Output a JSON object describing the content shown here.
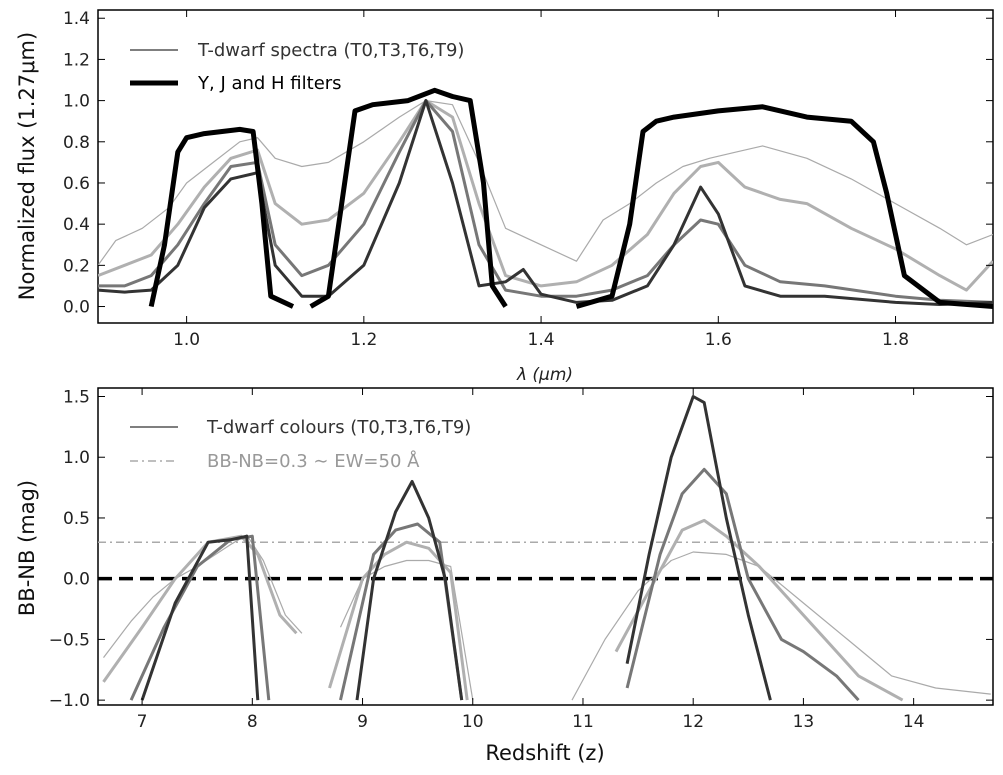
{
  "chart_data": [
    {
      "type": "line",
      "panel": "top",
      "xlabel": "λ (μm)",
      "ylabel": "Normalized flux (1.27μm)",
      "xlim": [
        0.9,
        1.91
      ],
      "ylim": [
        -0.08,
        1.44
      ],
      "xticks": [
        1.0,
        1.2,
        1.4,
        1.6,
        1.8
      ],
      "xtick_labels": [
        "1.0",
        "1.2",
        "1.4",
        "1.6",
        "1.8"
      ],
      "yticks": [
        0.0,
        0.2,
        0.4,
        0.6,
        0.8,
        1.0,
        1.2,
        1.4
      ],
      "ytick_labels": [
        "0.0",
        "0.2",
        "0.4",
        "0.6",
        "0.8",
        "1.0",
        "1.2",
        "1.4"
      ],
      "legend": [
        {
          "label": "T-dwarf spectra (T0,T3,T6,T9)",
          "color": "#555555",
          "style": "thin"
        },
        {
          "label": "Y, J and H filters",
          "color": "#000000",
          "style": "thick"
        }
      ],
      "series": [
        {
          "name": "T0",
          "color": "#aaaaaa",
          "width": 1.2,
          "x": [
            0.9,
            0.92,
            0.95,
            0.98,
            1.0,
            1.03,
            1.06,
            1.08,
            1.1,
            1.13,
            1.16,
            1.2,
            1.24,
            1.27,
            1.3,
            1.33,
            1.36,
            1.4,
            1.44,
            1.47,
            1.5,
            1.53,
            1.56,
            1.59,
            1.62,
            1.65,
            1.7,
            1.75,
            1.8,
            1.85,
            1.88,
            1.91
          ],
          "y": [
            0.2,
            0.32,
            0.38,
            0.48,
            0.6,
            0.7,
            0.8,
            0.82,
            0.72,
            0.68,
            0.7,
            0.8,
            0.92,
            1.0,
            0.98,
            0.7,
            0.38,
            0.3,
            0.22,
            0.42,
            0.5,
            0.6,
            0.68,
            0.72,
            0.75,
            0.78,
            0.72,
            0.62,
            0.5,
            0.38,
            0.3,
            0.35
          ]
        },
        {
          "name": "T3",
          "color": "#b0b0b0",
          "width": 3,
          "x": [
            0.9,
            0.93,
            0.96,
            0.99,
            1.02,
            1.05,
            1.08,
            1.1,
            1.13,
            1.16,
            1.2,
            1.24,
            1.27,
            1.3,
            1.33,
            1.36,
            1.4,
            1.44,
            1.48,
            1.52,
            1.55,
            1.58,
            1.6,
            1.63,
            1.67,
            1.7,
            1.75,
            1.8,
            1.85,
            1.88,
            1.91
          ],
          "y": [
            0.15,
            0.2,
            0.25,
            0.4,
            0.58,
            0.72,
            0.76,
            0.5,
            0.4,
            0.42,
            0.55,
            0.8,
            1.0,
            0.92,
            0.5,
            0.15,
            0.1,
            0.12,
            0.2,
            0.35,
            0.55,
            0.68,
            0.7,
            0.58,
            0.52,
            0.5,
            0.38,
            0.28,
            0.15,
            0.08,
            0.22
          ]
        },
        {
          "name": "T6",
          "color": "#777777",
          "width": 3,
          "x": [
            0.9,
            0.93,
            0.96,
            0.99,
            1.02,
            1.05,
            1.08,
            1.1,
            1.13,
            1.16,
            1.2,
            1.24,
            1.27,
            1.3,
            1.33,
            1.36,
            1.4,
            1.44,
            1.48,
            1.52,
            1.55,
            1.58,
            1.6,
            1.63,
            1.67,
            1.72,
            1.8,
            1.85,
            1.91
          ],
          "y": [
            0.1,
            0.1,
            0.15,
            0.3,
            0.5,
            0.68,
            0.7,
            0.3,
            0.15,
            0.2,
            0.4,
            0.75,
            1.0,
            0.85,
            0.3,
            0.08,
            0.05,
            0.05,
            0.08,
            0.15,
            0.3,
            0.42,
            0.4,
            0.2,
            0.12,
            0.1,
            0.05,
            0.03,
            0.02
          ]
        },
        {
          "name": "T9",
          "color": "#333333",
          "width": 3,
          "x": [
            0.9,
            0.93,
            0.96,
            0.99,
            1.02,
            1.05,
            1.08,
            1.1,
            1.13,
            1.16,
            1.2,
            1.24,
            1.27,
            1.3,
            1.33,
            1.36,
            1.38,
            1.4,
            1.44,
            1.48,
            1.52,
            1.55,
            1.58,
            1.6,
            1.63,
            1.67,
            1.72,
            1.8,
            1.85,
            1.91
          ],
          "y": [
            0.08,
            0.07,
            0.08,
            0.2,
            0.48,
            0.62,
            0.65,
            0.2,
            0.05,
            0.05,
            0.2,
            0.6,
            1.0,
            0.6,
            0.1,
            0.12,
            0.18,
            0.06,
            0.02,
            0.03,
            0.1,
            0.3,
            0.58,
            0.45,
            0.1,
            0.05,
            0.05,
            0.02,
            0.01,
            0.02
          ]
        }
      ],
      "filters": [
        {
          "name": "Y",
          "x": [
            0.96,
            0.975,
            0.99,
            1.0,
            1.02,
            1.04,
            1.06,
            1.075,
            1.085,
            1.095,
            1.12
          ],
          "y": [
            0.0,
            0.3,
            0.75,
            0.82,
            0.84,
            0.85,
            0.86,
            0.85,
            0.5,
            0.05,
            0.0
          ]
        },
        {
          "name": "J",
          "x": [
            1.14,
            1.16,
            1.175,
            1.19,
            1.21,
            1.25,
            1.28,
            1.3,
            1.32,
            1.335,
            1.345,
            1.36
          ],
          "y": [
            0.0,
            0.05,
            0.5,
            0.95,
            0.98,
            1.0,
            1.05,
            1.02,
            1.0,
            0.6,
            0.1,
            0.0
          ]
        },
        {
          "name": "H",
          "x": [
            1.44,
            1.48,
            1.5,
            1.515,
            1.53,
            1.55,
            1.6,
            1.65,
            1.7,
            1.75,
            1.775,
            1.79,
            1.81,
            1.85,
            1.91
          ],
          "y": [
            0.0,
            0.05,
            0.4,
            0.85,
            0.9,
            0.92,
            0.95,
            0.97,
            0.92,
            0.9,
            0.8,
            0.55,
            0.15,
            0.02,
            0.0
          ]
        }
      ]
    },
    {
      "type": "line",
      "panel": "bottom",
      "xlabel": "Redshift (z)",
      "ylabel": "BB-NB (mag)",
      "xlim": [
        6.6,
        14.72
      ],
      "ylim": [
        -1.04,
        1.57
      ],
      "xticks": [
        7,
        8,
        9,
        10,
        11,
        12,
        13,
        14
      ],
      "xtick_labels": [
        "7",
        "8",
        "9",
        "10",
        "11",
        "12",
        "13",
        "14"
      ],
      "yticks": [
        -1.0,
        -0.5,
        0.0,
        0.5,
        1.0,
        1.5
      ],
      "ytick_labels": [
        "−1.0",
        "−0.5",
        "0.0",
        "0.5",
        "1.0",
        "1.5"
      ],
      "legend": [
        {
          "label": "T-dwarf colours (T0,T3,T6,T9)",
          "color": "#555555",
          "style": "thin"
        },
        {
          "label": "BB-NB=0.3 ∼ EW=50 Å",
          "color": "#aaaaaa",
          "style": "dashdot"
        }
      ],
      "hlines": [
        {
          "y": 0.3,
          "color": "#aaaaaa",
          "style": "dashdot"
        },
        {
          "y": 0.0,
          "color": "#000000",
          "style": "dashed"
        }
      ],
      "series": [
        {
          "name": "T0",
          "color": "#aaaaaa",
          "width": 1.2,
          "segments": [
            {
              "x": [
                6.65,
                6.9,
                7.1,
                7.3,
                7.5,
                7.8,
                7.95,
                8.1,
                8.3,
                8.45
              ],
              "y": [
                -0.65,
                -0.35,
                -0.15,
                0.0,
                0.1,
                0.28,
                0.36,
                0.15,
                -0.3,
                -0.45
              ]
            },
            {
              "x": [
                8.8,
                9.0,
                9.2,
                9.4,
                9.6,
                9.8,
                10.0
              ],
              "y": [
                -0.4,
                0.0,
                0.1,
                0.15,
                0.15,
                0.1,
                -1.0
              ]
            },
            {
              "x": [
                10.9,
                11.2,
                11.5,
                11.8,
                12.0,
                12.3,
                12.6,
                13.0,
                13.4,
                13.8,
                14.2,
                14.7
              ],
              "y": [
                -1.0,
                -0.5,
                -0.1,
                0.15,
                0.22,
                0.2,
                0.1,
                -0.2,
                -0.5,
                -0.8,
                -0.9,
                -0.95
              ]
            }
          ]
        },
        {
          "name": "T3",
          "color": "#b0b0b0",
          "width": 3,
          "segments": [
            {
              "x": [
                6.65,
                7.0,
                7.3,
                7.6,
                7.9,
                8.05,
                8.25,
                8.4
              ],
              "y": [
                -0.85,
                -0.4,
                0.0,
                0.3,
                0.35,
                0.2,
                -0.3,
                -0.45
              ]
            },
            {
              "x": [
                8.7,
                9.0,
                9.2,
                9.4,
                9.6,
                9.8,
                9.95
              ],
              "y": [
                -0.9,
                0.0,
                0.2,
                0.3,
                0.25,
                0.05,
                -1.0
              ]
            },
            {
              "x": [
                11.3,
                11.6,
                11.9,
                12.1,
                12.3,
                12.6,
                12.9,
                13.2,
                13.5,
                13.9
              ],
              "y": [
                -0.6,
                -0.1,
                0.4,
                0.48,
                0.35,
                0.1,
                -0.2,
                -0.5,
                -0.8,
                -1.0
              ]
            }
          ]
        },
        {
          "name": "T6",
          "color": "#777777",
          "width": 3,
          "segments": [
            {
              "x": [
                6.9,
                7.2,
                7.5,
                7.8,
                8.0,
                8.15
              ],
              "y": [
                -1.0,
                -0.4,
                0.1,
                0.32,
                0.35,
                -1.0
              ]
            },
            {
              "x": [
                8.8,
                9.1,
                9.3,
                9.5,
                9.7,
                9.9
              ],
              "y": [
                -1.0,
                0.2,
                0.4,
                0.45,
                0.3,
                -1.0
              ]
            },
            {
              "x": [
                11.4,
                11.7,
                11.9,
                12.1,
                12.3,
                12.5,
                12.8,
                13.0,
                13.3,
                13.5
              ],
              "y": [
                -0.9,
                0.2,
                0.7,
                0.9,
                0.7,
                0.0,
                -0.5,
                -0.6,
                -0.8,
                -1.0
              ]
            }
          ]
        },
        {
          "name": "T9",
          "color": "#333333",
          "width": 3,
          "segments": [
            {
              "x": [
                7.0,
                7.3,
                7.6,
                7.8,
                7.95,
                8.05
              ],
              "y": [
                -1.0,
                -0.2,
                0.3,
                0.32,
                0.35,
                -1.0
              ]
            },
            {
              "x": [
                8.95,
                9.1,
                9.3,
                9.45,
                9.6,
                9.75,
                9.9
              ],
              "y": [
                -1.0,
                0.0,
                0.55,
                0.8,
                0.5,
                0.0,
                -1.0
              ]
            },
            {
              "x": [
                11.4,
                11.6,
                11.8,
                12.0,
                12.1,
                12.3,
                12.5,
                12.7
              ],
              "y": [
                -0.7,
                0.2,
                1.0,
                1.5,
                1.45,
                0.5,
                -0.3,
                -1.0
              ]
            }
          ]
        }
      ]
    }
  ]
}
